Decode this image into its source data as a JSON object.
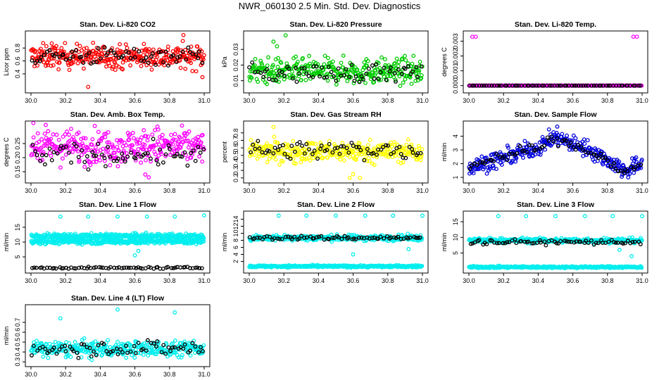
{
  "figure_title": "NWR_060130  2.5 Min. Std. Dev. Diagnostics",
  "x_tick_labels": [
    "30.0",
    "30.2",
    "30.4",
    "30.6",
    "30.8",
    "31.0"
  ],
  "chart_data": [
    {
      "type": "scatter",
      "title": "Stan. Dev. Li-820 CO2",
      "ylabel": "Licor ppm",
      "xlim": [
        30.0,
        31.0
      ],
      "ylim": [
        0.15,
        1.02
      ],
      "yticks": [
        0.4,
        0.6,
        0.8
      ],
      "ytick_labels": [
        "0.4",
        "0.6",
        "0.8"
      ],
      "color": "#ff0000",
      "series": [
        {
          "name": "main",
          "center": 0.67,
          "spread": 0.09
        },
        {
          "name": "black",
          "center": 0.68,
          "spread": 0.07
        }
      ],
      "outliers": [
        {
          "x": 30.33,
          "y": 0.2
        },
        {
          "x": 30.88,
          "y": 1.0
        },
        {
          "x": 30.12,
          "y": 0.87
        },
        {
          "x": 30.99,
          "y": 0.35
        }
      ]
    },
    {
      "type": "scatter",
      "title": "Stan. Dev. Li-820 Pressure",
      "ylabel": "kPa",
      "xlim": [
        30.0,
        31.0
      ],
      "ylim": [
        0.004,
        0.04
      ],
      "yticks": [
        0.01,
        0.02,
        0.03
      ],
      "ytick_labels": [
        "0.01",
        "0.02",
        "0.03"
      ],
      "color": "#00cc00",
      "series": [
        {
          "name": "main",
          "center": 0.016,
          "spread": 0.004
        },
        {
          "name": "black",
          "center": 0.015,
          "spread": 0.003
        }
      ],
      "outliers": [
        {
          "x": 30.21,
          "y": 0.039
        },
        {
          "x": 30.16,
          "y": 0.032
        },
        {
          "x": 30.14,
          "y": 0.035
        }
      ]
    },
    {
      "type": "scatter",
      "title": "Stan. Dev. Li-820 Temp.",
      "ylabel": "degrees C",
      "xlim": [
        30.0,
        31.0
      ],
      "ylim": [
        -0.0003,
        0.0035
      ],
      "yticks": [
        0.0,
        0.001,
        0.002,
        0.003
      ],
      "ytick_labels": [
        "0.000",
        "0.001",
        "0.002",
        "0.003"
      ],
      "color": "#ff00ff",
      "series": [
        {
          "name": "main",
          "center": 0.0,
          "spread": 0.0
        },
        {
          "name": "black",
          "center": 0.0,
          "spread": 0.0
        }
      ],
      "outliers": [
        {
          "x": 30.02,
          "y": 0.0033
        },
        {
          "x": 30.04,
          "y": 0.0033
        },
        {
          "x": 30.95,
          "y": 0.0033
        },
        {
          "x": 30.97,
          "y": 0.0033
        }
      ]
    },
    {
      "type": "scatter",
      "title": "Stan. Dev. Amb. Box Temp.",
      "ylabel": "degrees C",
      "xlim": [
        30.0,
        31.0
      ],
      "ylim": [
        0.12,
        0.32
      ],
      "yticks": [
        0.15,
        0.2,
        0.25
      ],
      "ytick_labels": [
        "0.15",
        "0.20",
        "0.25"
      ],
      "color": "#ff00ff",
      "series": [
        {
          "name": "main",
          "center": 0.24,
          "spread": 0.03
        },
        {
          "name": "black",
          "center": 0.21,
          "spread": 0.02
        }
      ],
      "outliers": [
        {
          "x": 30.68,
          "y": 0.13
        },
        {
          "x": 30.66,
          "y": 0.14
        },
        {
          "x": 30.73,
          "y": 0.31
        }
      ]
    },
    {
      "type": "scatter",
      "title": "Stan. Dev. Gas Stream RH",
      "ylabel": "percent",
      "xlim": [
        30.0,
        31.0
      ],
      "ylim": [
        0.17,
        0.92
      ],
      "yticks": [
        0.2,
        0.3,
        0.4,
        0.5,
        0.6,
        0.7,
        0.8
      ],
      "ytick_labels": [
        "0.2",
        "0.3",
        "0.4",
        "0.5",
        "0.6",
        "0.7",
        "0.8"
      ],
      "color": "#ffff00",
      "series": [
        {
          "name": "main",
          "center": 0.55,
          "spread": 0.07
        },
        {
          "name": "black",
          "center": 0.57,
          "spread": 0.06
        }
      ],
      "outliers": [
        {
          "x": 30.14,
          "y": 0.88
        },
        {
          "x": 30.58,
          "y": 0.2
        },
        {
          "x": 30.6,
          "y": 0.25
        },
        {
          "x": 30.64,
          "y": 0.2
        }
      ]
    },
    {
      "type": "scatter",
      "title": "Stan. Dev. Sample Flow",
      "ylabel": "ml/min",
      "xlim": [
        30.0,
        31.0
      ],
      "ylim": [
        0.8,
        4.9
      ],
      "yticks": [
        1,
        2,
        3,
        4
      ],
      "ytick_labels": [
        "1",
        "2",
        "3",
        "4"
      ],
      "color": "#0000dd",
      "series": [
        {
          "name": "main",
          "trend": [
            [
              30.0,
              1.7
            ],
            [
              30.2,
              2.4
            ],
            [
              30.4,
              3.2
            ],
            [
              30.5,
              3.9
            ],
            [
              30.7,
              3.0
            ],
            [
              30.9,
              1.5
            ],
            [
              31.0,
              2.0
            ]
          ],
          "spread": 0.3
        },
        {
          "name": "black",
          "trend": [
            [
              30.0,
              1.9
            ],
            [
              30.2,
              2.5
            ],
            [
              30.4,
              3.2
            ],
            [
              30.5,
              3.8
            ],
            [
              30.7,
              2.9
            ],
            [
              30.9,
              1.4
            ],
            [
              31.0,
              1.9
            ]
          ],
          "spread": 0.2
        }
      ],
      "outliers": [
        {
          "x": 30.51,
          "y": 4.7
        },
        {
          "x": 30.92,
          "y": 1.0
        }
      ]
    },
    {
      "type": "scatter",
      "title": "Stan. Dev. Line 1 Flow",
      "ylabel": "ml/min",
      "xlim": [
        30.0,
        31.0
      ],
      "ylim": [
        0.5,
        19.5
      ],
      "yticks": [
        5,
        10,
        15
      ],
      "ytick_labels": [
        "5",
        "10",
        "15"
      ],
      "color": "#00eeee",
      "series": [
        {
          "name": "band-high",
          "center": 12.0,
          "spread": 0.4
        },
        {
          "name": "band-low",
          "center": 10.2,
          "spread": 0.4
        },
        {
          "name": "black",
          "center": 1.3,
          "spread": 0.15
        }
      ],
      "outliers": [
        {
          "x": 30.17,
          "y": 18.6
        },
        {
          "x": 30.33,
          "y": 18.6
        },
        {
          "x": 30.5,
          "y": 18.6
        },
        {
          "x": 30.67,
          "y": 18.6
        },
        {
          "x": 30.83,
          "y": 18.6
        },
        {
          "x": 31.0,
          "y": 19.0
        },
        {
          "x": 30.6,
          "y": 5.5
        },
        {
          "x": 30.62,
          "y": 7.0
        }
      ]
    },
    {
      "type": "scatter",
      "title": "Stan. Dev. Line 2 Flow",
      "ylabel": "ml/min",
      "xlim": [
        30.0,
        31.0
      ],
      "ylim": [
        -0.5,
        15.5
      ],
      "yticks": [
        2,
        4,
        6,
        8,
        10,
        12,
        14
      ],
      "ytick_labels": [
        "2",
        "4",
        "6",
        "8",
        "10",
        "12",
        "14"
      ],
      "color": "#00eeee",
      "series": [
        {
          "name": "band-high",
          "center": 8.7,
          "spread": 0.4
        },
        {
          "name": "band-low",
          "center": 0.6,
          "spread": 0.15
        },
        {
          "name": "black",
          "center": 8.7,
          "spread": 0.3
        }
      ],
      "outliers": [
        {
          "x": 30.17,
          "y": 15.0
        },
        {
          "x": 30.33,
          "y": 15.0
        },
        {
          "x": 30.5,
          "y": 15.0
        },
        {
          "x": 30.67,
          "y": 15.0
        },
        {
          "x": 30.83,
          "y": 15.0
        },
        {
          "x": 31.0,
          "y": 15.0
        },
        {
          "x": 30.6,
          "y": 4.0
        },
        {
          "x": 30.92,
          "y": 5.5
        }
      ]
    },
    {
      "type": "scatter",
      "title": "Stan. Dev. Line 3 Flow",
      "ylabel": "ml/min",
      "xlim": [
        30.0,
        31.0
      ],
      "ylim": [
        -0.5,
        17.5
      ],
      "yticks": [
        5,
        10,
        15
      ],
      "ytick_labels": [
        "5",
        "10",
        "15"
      ],
      "color": "#00eeee",
      "series": [
        {
          "name": "band-high",
          "center": 9.0,
          "spread": 0.4
        },
        {
          "name": "band-low",
          "center": 0.5,
          "spread": 0.15
        },
        {
          "name": "black",
          "center": 8.5,
          "spread": 0.4
        }
      ],
      "outliers": [
        {
          "x": 30.17,
          "y": 16.8
        },
        {
          "x": 30.33,
          "y": 16.8
        },
        {
          "x": 30.5,
          "y": 16.8
        },
        {
          "x": 30.67,
          "y": 16.8
        },
        {
          "x": 30.83,
          "y": 16.8
        },
        {
          "x": 31.0,
          "y": 16.8
        },
        {
          "x": 30.94,
          "y": 4.0
        },
        {
          "x": 30.87,
          "y": 6.0
        }
      ]
    },
    {
      "type": "scatter",
      "title": "Stan. Dev. Line 4 (LT) Flow",
      "ylabel": "ml/min",
      "xlim": [
        30.0,
        31.0
      ],
      "ylim": [
        0.28,
        0.85
      ],
      "yticks": [
        0.3,
        0.4,
        0.5,
        0.6,
        0.7
      ],
      "ytick_labels": [
        "0.3",
        "0.4",
        "0.5",
        "0.6",
        "0.7"
      ],
      "color": "#00eeee",
      "series": [
        {
          "name": "main",
          "center": 0.43,
          "spread": 0.04
        },
        {
          "name": "black",
          "center": 0.44,
          "spread": 0.04
        }
      ],
      "outliers": [
        {
          "x": 30.17,
          "y": 0.74
        },
        {
          "x": 30.5,
          "y": 0.83
        },
        {
          "x": 30.83,
          "y": 0.8
        },
        {
          "x": 30.35,
          "y": 0.32
        }
      ]
    }
  ]
}
